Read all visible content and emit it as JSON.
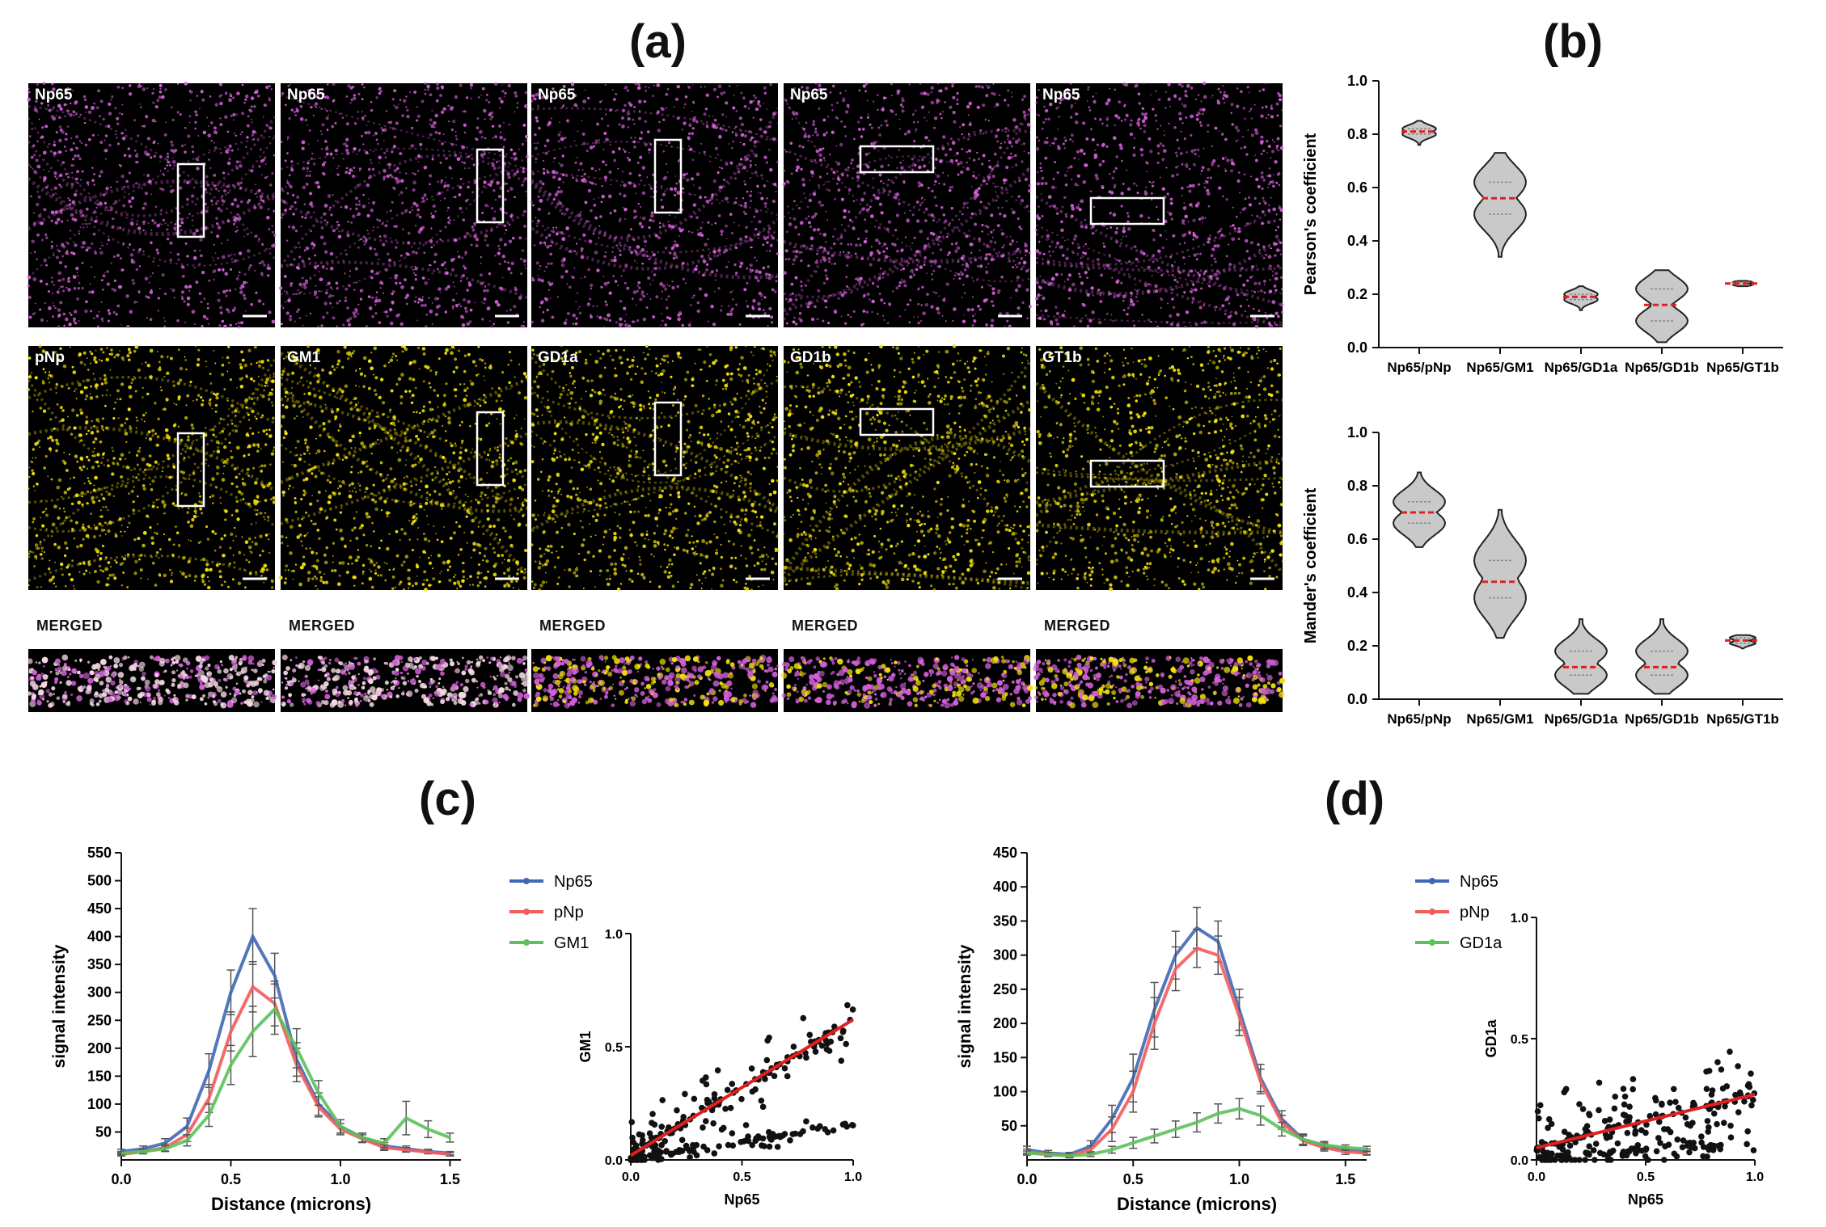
{
  "panels": {
    "a": "(a)",
    "b": "(b)",
    "c": "(c)",
    "d": "(d)"
  },
  "images": {
    "top_row": [
      "Np65",
      "Np65",
      "Np65",
      "Np65",
      "Np65"
    ],
    "middle_row": [
      "pNp",
      "GM1",
      "GD1a",
      "GD1b",
      "GT1b"
    ],
    "merged_label": "MERGED",
    "merged_labels": [
      "MERGED",
      "MERGED",
      "MERGED",
      "MERGED",
      "MERGED"
    ],
    "colors": {
      "magenta": "#d35fd8",
      "yellow": "#f2e20a",
      "pale": "#f4d8e4"
    }
  },
  "chart_data": [
    {
      "id": "b_pearson",
      "type": "violin",
      "ylabel": "Pearson's coefficient",
      "ylim": [
        0,
        1.0
      ],
      "yticks": [
        "0.0",
        "0.2",
        "0.4",
        "0.6",
        "0.8",
        "1.0"
      ],
      "categories": [
        "Np65/pNp",
        "Np65/GM1",
        "Np65/GD1a",
        "Np65/GD1b",
        "Np65/GT1b"
      ],
      "medians": [
        0.81,
        0.56,
        0.19,
        0.16,
        0.24
      ],
      "quartiles": [
        [
          0.8,
          0.82
        ],
        [
          0.5,
          0.62
        ],
        [
          0.18,
          0.2
        ],
        [
          0.1,
          0.22
        ],
        [
          0.235,
          0.245
        ]
      ],
      "ranges": [
        [
          0.76,
          0.85
        ],
        [
          0.34,
          0.73
        ],
        [
          0.14,
          0.23
        ],
        [
          0.02,
          0.29
        ],
        [
          0.23,
          0.25
        ]
      ]
    },
    {
      "id": "b_manders",
      "type": "violin",
      "ylabel": "Mander's coefficient",
      "ylim": [
        0,
        1.0
      ],
      "yticks": [
        "0.0",
        "0.2",
        "0.4",
        "0.6",
        "0.8",
        "1.0"
      ],
      "categories": [
        "Np65/pNp",
        "Np65/GM1",
        "Np65/GD1a",
        "Np65/GD1b",
        "Np65/GT1b"
      ],
      "medians": [
        0.7,
        0.44,
        0.12,
        0.12,
        0.22
      ],
      "quartiles": [
        [
          0.66,
          0.74
        ],
        [
          0.38,
          0.52
        ],
        [
          0.09,
          0.18
        ],
        [
          0.09,
          0.18
        ],
        [
          0.21,
          0.23
        ]
      ],
      "ranges": [
        [
          0.57,
          0.85
        ],
        [
          0.23,
          0.71
        ],
        [
          0.02,
          0.3
        ],
        [
          0.02,
          0.3
        ],
        [
          0.19,
          0.24
        ]
      ]
    },
    {
      "id": "c_profile",
      "type": "line",
      "xlabel": "Distance (microns)",
      "ylabel": "signal intensity",
      "xlim": [
        0,
        1.55
      ],
      "ylim": [
        0,
        550
      ],
      "xticks": [
        "0.0",
        "0.5",
        "1.0",
        "1.5"
      ],
      "yticks": [
        "50",
        "100",
        "150",
        "200",
        "250",
        "300",
        "350",
        "400",
        "450",
        "500",
        "550"
      ],
      "x": [
        0.0,
        0.1,
        0.2,
        0.3,
        0.4,
        0.5,
        0.6,
        0.7,
        0.8,
        0.9,
        1.0,
        1.1,
        1.2,
        1.3,
        1.4,
        1.5
      ],
      "series": [
        {
          "name": "Np65",
          "color": "#3f68b5",
          "values": [
            15,
            20,
            30,
            60,
            160,
            300,
            400,
            330,
            180,
            100,
            60,
            40,
            25,
            20,
            15,
            12
          ],
          "err": [
            4,
            5,
            8,
            15,
            30,
            40,
            50,
            40,
            30,
            20,
            12,
            8,
            6,
            5,
            4,
            3
          ]
        },
        {
          "name": "pNp",
          "color": "#f25c5c",
          "values": [
            10,
            15,
            22,
            45,
            110,
            230,
            310,
            280,
            170,
            95,
            55,
            38,
            22,
            18,
            14,
            10
          ],
          "err": [
            3,
            4,
            6,
            12,
            25,
            35,
            45,
            40,
            30,
            18,
            10,
            7,
            5,
            4,
            3,
            3
          ]
        },
        {
          "name": "GM1",
          "color": "#5cc15a",
          "values": [
            12,
            15,
            20,
            35,
            80,
            170,
            230,
            270,
            200,
            120,
            60,
            40,
            30,
            75,
            55,
            40
          ],
          "err": [
            3,
            4,
            5,
            10,
            20,
            35,
            45,
            45,
            35,
            22,
            12,
            8,
            8,
            30,
            15,
            8
          ]
        }
      ]
    },
    {
      "id": "c_scatter",
      "type": "scatter",
      "xlabel": "Np65",
      "ylabel": "GM1",
      "xlim": [
        0,
        1.0
      ],
      "ylim": [
        0,
        1.0
      ],
      "xticks": [
        "0.0",
        "0.5",
        "1.0"
      ],
      "yticks": [
        "0.0",
        "0.5",
        "1.0"
      ],
      "fit": {
        "slope": 0.6,
        "intercept": 0.02,
        "color": "#e21f1f"
      }
    },
    {
      "id": "d_profile",
      "type": "line",
      "xlabel": "Distance (microns)",
      "ylabel": "signal intensity",
      "xlim": [
        0,
        1.6
      ],
      "ylim": [
        0,
        450
      ],
      "xticks": [
        "0.0",
        "0.5",
        "1.0",
        "1.5"
      ],
      "yticks": [
        "50",
        "100",
        "150",
        "200",
        "250",
        "300",
        "350",
        "400",
        "450"
      ],
      "x": [
        0.0,
        0.1,
        0.2,
        0.3,
        0.4,
        0.5,
        0.6,
        0.7,
        0.8,
        0.9,
        1.0,
        1.1,
        1.2,
        1.3,
        1.4,
        1.5,
        1.6
      ],
      "series": [
        {
          "name": "Np65",
          "color": "#3f68b5",
          "values": [
            15,
            10,
            8,
            20,
            60,
            120,
            220,
            300,
            340,
            320,
            220,
            120,
            60,
            30,
            20,
            15,
            12
          ],
          "err": [
            5,
            4,
            3,
            8,
            20,
            35,
            40,
            35,
            30,
            30,
            30,
            20,
            12,
            8,
            5,
            4,
            4
          ]
        },
        {
          "name": "pNp",
          "color": "#f25c5c",
          "values": [
            12,
            8,
            6,
            15,
            45,
            100,
            200,
            280,
            310,
            300,
            210,
            115,
            55,
            28,
            18,
            12,
            10
          ],
          "err": [
            4,
            3,
            3,
            6,
            18,
            30,
            38,
            32,
            28,
            28,
            28,
            18,
            10,
            7,
            5,
            4,
            3
          ]
        },
        {
          "name": "GD1a",
          "color": "#5cc15a",
          "values": [
            10,
            8,
            6,
            8,
            15,
            25,
            35,
            45,
            55,
            68,
            75,
            65,
            45,
            30,
            22,
            18,
            16
          ],
          "err": [
            3,
            3,
            2,
            3,
            5,
            8,
            10,
            12,
            14,
            14,
            15,
            14,
            10,
            7,
            5,
            4,
            4
          ]
        }
      ]
    },
    {
      "id": "d_scatter",
      "type": "scatter",
      "xlabel": "Np65",
      "ylabel": "GD1a",
      "xlim": [
        0,
        1.0
      ],
      "ylim": [
        0,
        1.0
      ],
      "xticks": [
        "0.0",
        "0.5",
        "1.0"
      ],
      "yticks": [
        "0.0",
        "0.5",
        "1.0"
      ],
      "fit": {
        "slope": 0.22,
        "intercept": 0.05,
        "color": "#e21f1f"
      }
    }
  ]
}
